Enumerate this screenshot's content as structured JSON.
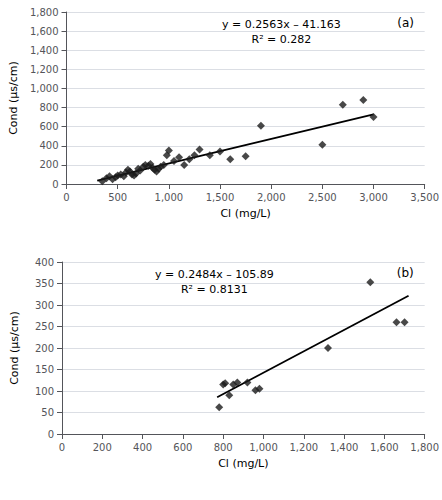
{
  "chart_data": [
    {
      "type": "scatter",
      "xlabel": "Cl (mg/L)",
      "ylabel": "Cond (µs/cm)",
      "annotations": [
        "y = 0.2563x – 41.163",
        "R² = 0.282",
        "(a)"
      ],
      "xlim": [
        0,
        3500
      ],
      "ylim": [
        0,
        1800
      ],
      "xticks": [
        0,
        500,
        1000,
        1500,
        2000,
        2500,
        3000,
        3500
      ],
      "yticks": [
        0,
        200,
        400,
        600,
        800,
        1000,
        1200,
        1400,
        1600,
        1800
      ],
      "grid": true,
      "series": [
        {
          "type": "scatter",
          "color": "#1a1a1a",
          "marker": "diamond",
          "x": [
            350,
            390,
            420,
            450,
            480,
            500,
            530,
            560,
            580,
            600,
            620,
            640,
            660,
            680,
            700,
            720,
            750,
            770,
            800,
            820,
            840,
            860,
            880,
            900,
            920,
            950,
            980,
            1000,
            1050,
            1100,
            1150,
            1200,
            1250,
            1300,
            1400,
            1500,
            1600,
            1750,
            1900,
            2500,
            2700,
            2900,
            3000
          ],
          "values": [
            30,
            60,
            80,
            50,
            70,
            90,
            100,
            80,
            120,
            150,
            130,
            100,
            90,
            110,
            160,
            140,
            180,
            200,
            190,
            210,
            170,
            150,
            130,
            160,
            180,
            200,
            300,
            350,
            240,
            280,
            200,
            260,
            300,
            360,
            300,
            340,
            260,
            290,
            610,
            410,
            830,
            880,
            700
          ]
        },
        {
          "type": "line",
          "color": "#000000",
          "line_style": "solid",
          "x": [
            300,
            3000
          ],
          "values": [
            35.727,
            727.737
          ]
        }
      ]
    },
    {
      "type": "scatter",
      "xlabel": "Cl (mg/L)",
      "ylabel": "Cond (µs/cm)",
      "annotations": [
        "y = 0.2484x – 105.89",
        "R² = 0.8131",
        "(b)"
      ],
      "xlim": [
        0,
        1800
      ],
      "ylim": [
        0,
        400
      ],
      "xticks": [
        0,
        200,
        400,
        600,
        800,
        1000,
        1200,
        1400,
        1600,
        1800
      ],
      "yticks": [
        0,
        50,
        100,
        150,
        200,
        250,
        300,
        350,
        400
      ],
      "grid": true,
      "series": [
        {
          "type": "scatter",
          "color": "#1a1a1a",
          "marker": "diamond",
          "x": [
            780,
            800,
            810,
            830,
            850,
            870,
            920,
            960,
            980,
            1320,
            1530,
            1660,
            1700
          ],
          "values": [
            62,
            115,
            118,
            90,
            115,
            120,
            120,
            102,
            105,
            200,
            353,
            260,
            260
          ]
        },
        {
          "type": "line",
          "color": "#000000",
          "line_style": "solid",
          "x": [
            770,
            1720
          ],
          "values": [
            85.378,
            321.358
          ]
        }
      ]
    }
  ]
}
